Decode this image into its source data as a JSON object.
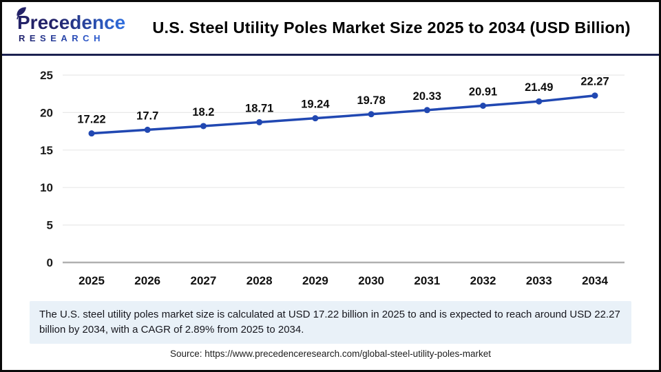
{
  "header": {
    "logo": {
      "line1": "Precedence",
      "line2": "RESEARCH"
    },
    "title": "U.S. Steel Utility Poles Market Size 2025 to 2034 (USD Billion)"
  },
  "chart_data": {
    "type": "line",
    "title": "U.S. Steel Utility Poles Market Size 2025 to 2034 (USD Billion)",
    "categories": [
      "2025",
      "2026",
      "2027",
      "2028",
      "2029",
      "2030",
      "2031",
      "2032",
      "2033",
      "2034"
    ],
    "values": [
      17.22,
      17.7,
      18.2,
      18.71,
      19.24,
      19.78,
      20.33,
      20.91,
      21.49,
      22.27
    ],
    "xlabel": "",
    "ylabel": "",
    "ylim": [
      0,
      25
    ],
    "y_ticks": [
      0,
      5,
      10,
      15,
      20,
      25
    ],
    "grid": true,
    "legend": "none",
    "line_color": "#2148b2",
    "marker": "circle",
    "data_labels_shown": true
  },
  "summary": {
    "text": "The U.S. steel utility poles market size is calculated at USD 17.22 billion in 2025 to and is expected to reach around USD 22.27 billion by 2034, with a CAGR of 2.89% from 2025 to 2034."
  },
  "source": {
    "text": "Source: https://www.precedenceresearch.com/global-steel-utility-poles-market"
  }
}
